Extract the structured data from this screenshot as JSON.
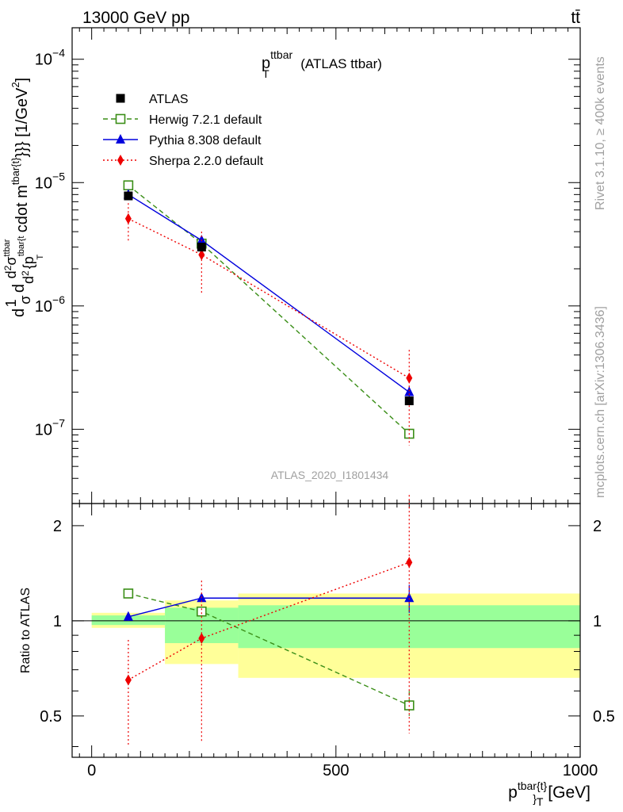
{
  "header": {
    "left": "13000 GeV pp",
    "right": "tt̄"
  },
  "main_plot": {
    "title": "p",
    "title_sup": "ttbar",
    "title_sub": "T",
    "title_suffix": "(ATLAS ttbar)",
    "ylabel": "d 1 d d²σ^ttbar / σ d d² {p^tbar{t} T cdot m^tbar{t}}} [1/GeV²]",
    "ylabel_parts": {
      "a": "d",
      "b": "1",
      "c": "σ",
      "d": "d",
      "e": "d",
      "f": "2",
      "g": "σ",
      "h": "ttbar",
      "i": "d",
      "j": "2",
      "k": "{p",
      "l": "tbar{t",
      "m": "T",
      "n": "cdot m",
      "o": "tbar{t}",
      "p": "}}} [1/GeV",
      "q": "2",
      "r": "]"
    },
    "watermark": "ATLAS_2020_I1801434",
    "y_ticks": [
      {
        "base": "10",
        "exp": "−4",
        "value": 0.0001
      },
      {
        "base": "10",
        "exp": "−5",
        "value": 1e-05
      },
      {
        "base": "10",
        "exp": "−6",
        "value": 1e-06
      },
      {
        "base": "10",
        "exp": "−7",
        "value": 1e-07
      }
    ]
  },
  "ratio_plot": {
    "ylabel": "Ratio to ATLAS",
    "y_ticks": [
      "0.5",
      "1",
      "2"
    ]
  },
  "x_axis": {
    "ticks": [
      "0",
      "500",
      "1000"
    ],
    "label_main": "p",
    "label_sup": "tbar{t}",
    "label_sub": "}",
    "label_sub2": "T",
    "label_unit": "[GeV]"
  },
  "side_text": {
    "rivet": "Rivet 3.1.10, ≥ 400k events",
    "mcplots": "mcplots.cern.ch [arXiv:1306.3436]"
  },
  "legend": [
    {
      "name": "ATLAS",
      "color": "#000000",
      "marker": "square-filled",
      "line": "none"
    },
    {
      "name": "Herwig 7.2.1 default",
      "color": "#3a8e17",
      "marker": "square-open",
      "line": "dashed"
    },
    {
      "name": "Pythia 8.308 default",
      "color": "#0000dd",
      "marker": "triangle",
      "line": "solid"
    },
    {
      "name": "Sherpa 2.2.0 default",
      "color": "#ee0000",
      "marker": "diamond",
      "line": "dotted"
    }
  ],
  "chart_data": {
    "type": "scatter",
    "x_scale": "linear",
    "y_scale": "log",
    "xlim": [
      -40,
      1000
    ],
    "ylim": [
      2.5e-08,
      0.00018
    ],
    "ratio_ylim": [
      0.37,
      2.35
    ],
    "ratio_y_scale": "log",
    "x": [
      75,
      225,
      650
    ],
    "bins": [
      [
        0,
        150
      ],
      [
        150,
        300
      ],
      [
        300,
        1000
      ]
    ],
    "data": {
      "name": "ATLAS",
      "values": [
        7.8e-06,
        3e-06,
        1.7e-07
      ]
    },
    "series": [
      {
        "name": "Herwig 7.2.1 default",
        "values": [
          9.5e-06,
          3.2e-06,
          9.2e-08
        ],
        "err_up": [
          null,
          null,
          9.8e-08
        ],
        "err_down": [
          null,
          null,
          8.6e-08
        ],
        "ratio": [
          1.22,
          1.07,
          0.54
        ],
        "ratio_err_up": [
          null,
          null,
          0.6
        ],
        "ratio_err_down": [
          null,
          null,
          0.5
        ]
      },
      {
        "name": "Pythia 8.308 default",
        "values": [
          8e-06,
          3.4e-06,
          2e-07
        ],
        "err_up": [
          null,
          null,
          2.2e-07
        ],
        "err_down": [
          null,
          null,
          1.8e-07
        ],
        "ratio": [
          1.03,
          1.18,
          1.18
        ],
        "ratio_err_up": [
          1.06,
          null,
          1.3
        ],
        "ratio_err_down": [
          1.0,
          null,
          1.06
        ]
      },
      {
        "name": "Sherpa 2.2.0 default",
        "values": [
          5.1e-06,
          2.6e-06,
          2.6e-07
        ],
        "err_up": [
          6.8e-06,
          4e-06,
          4.4e-07
        ],
        "err_down": [
          3.3e-06,
          1.25e-06,
          7.4e-08
        ],
        "ratio": [
          0.65,
          0.88,
          1.53
        ],
        "ratio_err_up": [
          0.87,
          1.34,
          2.5
        ],
        "ratio_err_down": [
          0.4,
          0.41,
          0.44
        ]
      }
    ],
    "ratio_bands": {
      "stat": [
        [
          0.97,
          1.04
        ],
        [
          0.85,
          1.1
        ],
        [
          0.82,
          1.12
        ]
      ],
      "total": [
        [
          0.95,
          1.06
        ],
        [
          0.73,
          1.16
        ],
        [
          0.66,
          1.22
        ]
      ]
    }
  }
}
